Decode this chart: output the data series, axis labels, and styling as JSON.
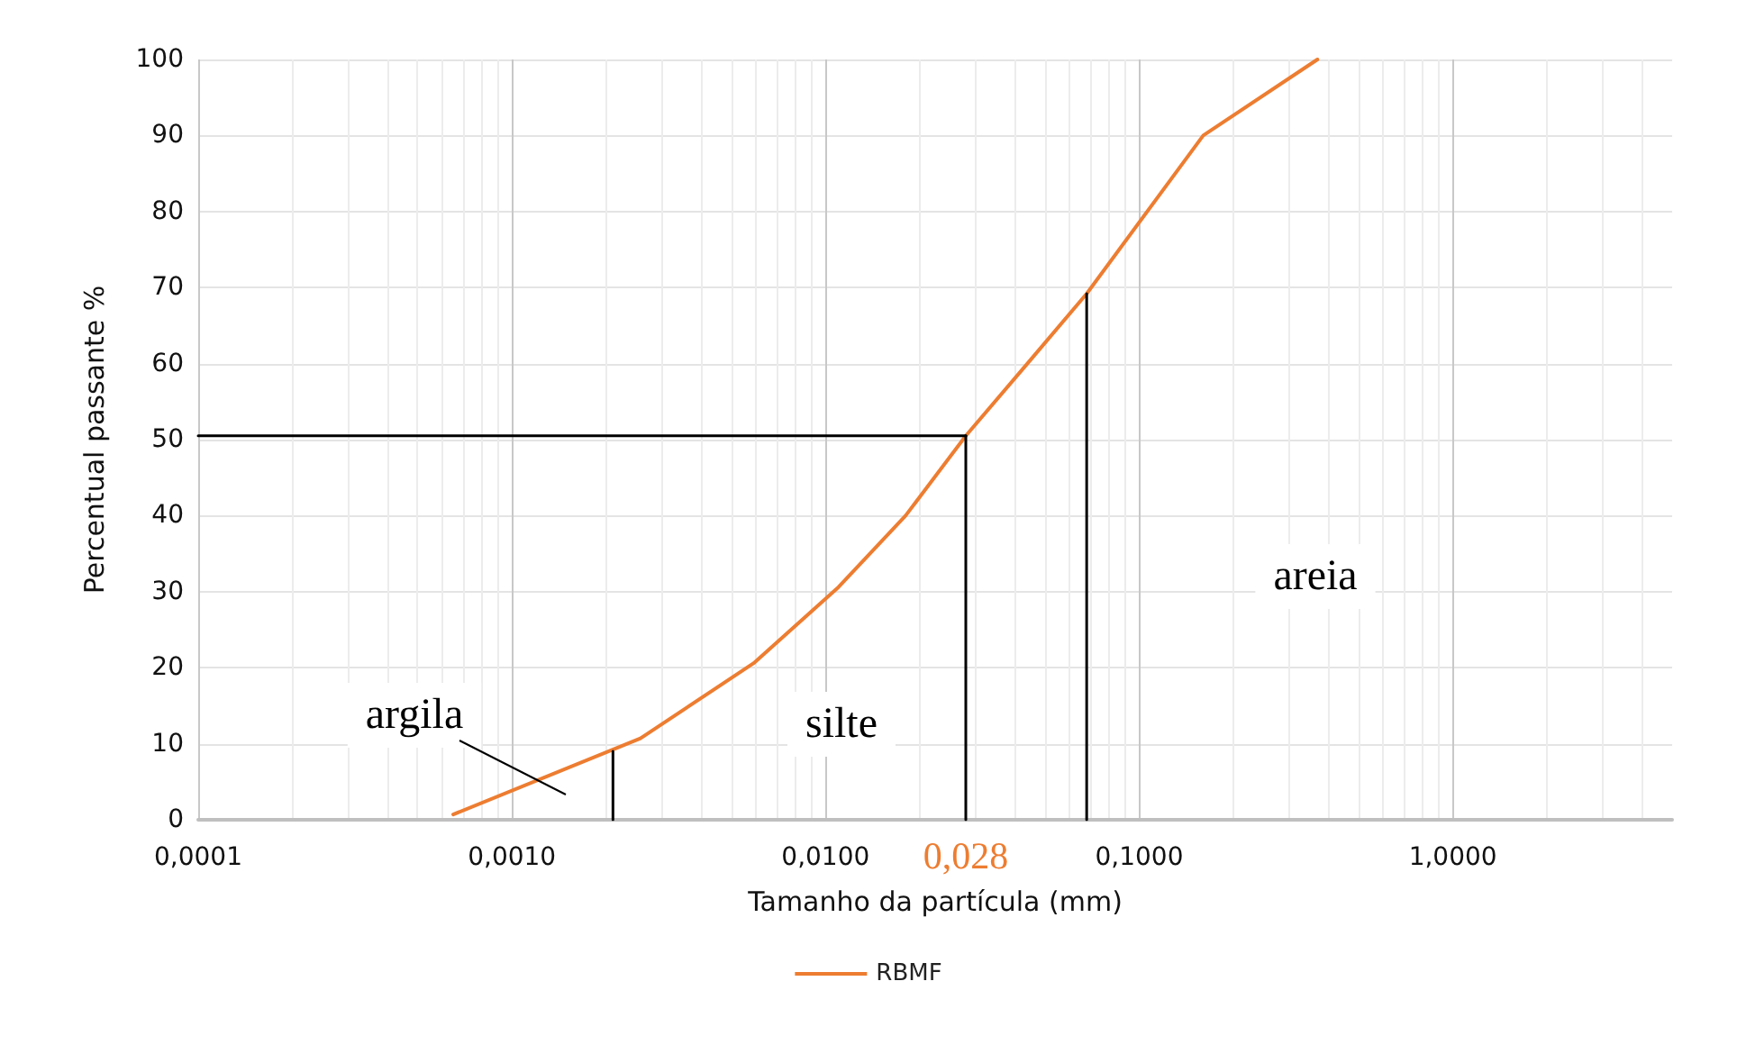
{
  "chart_data": {
    "type": "line",
    "xlabel": "Tamanho da partícula (mm)",
    "ylabel": "Percentual passante %",
    "log": "x",
    "grid": true,
    "legend": "bottom",
    "marker": "none",
    "line_style": "solid",
    "xlim": [
      0.0001,
      5
    ],
    "xticks": [
      {
        "value": 0.0001,
        "label": "0,0001"
      },
      {
        "value": 0.001,
        "label": "0,0010"
      },
      {
        "value": 0.01,
        "label": "0,0100"
      },
      {
        "value": 0.1,
        "label": "0,1000"
      },
      {
        "value": 1,
        "label": "1,0000"
      }
    ],
    "ylim": [
      0,
      100
    ],
    "yticks": [
      0,
      10,
      20,
      30,
      40,
      50,
      60,
      70,
      80,
      90,
      100
    ],
    "series": [
      {
        "name": "RBMF",
        "color": "#ed7d31",
        "x": [
          0.00065,
          0.00257,
          0.0059,
          0.011,
          0.018,
          0.028,
          0.044,
          0.068,
          0.16,
          0.37
        ],
        "values": [
          0.7,
          10.7,
          20.6,
          30.6,
          40,
          50.5,
          60,
          69.2,
          90,
          100
        ]
      },
      {
        "color": "#000000",
        "x": [
          0.0001,
          0.028
        ],
        "values": [
          50.5,
          50.5
        ]
      },
      {
        "color": "#000000",
        "x": [
          0.028,
          0.028
        ],
        "values": [
          0,
          50.5
        ]
      },
      {
        "color": "#000000",
        "x": [
          0.0021,
          0.0021
        ],
        "values": [
          0,
          9
        ]
      },
      {
        "color": "#000000",
        "x": [
          0.068,
          0.068
        ],
        "values": [
          0,
          69.2
        ]
      }
    ],
    "annotations": [
      "argila",
      "silte",
      "areia",
      {
        "text": "0,028",
        "x": 0.028,
        "y": 0
      }
    ]
  }
}
